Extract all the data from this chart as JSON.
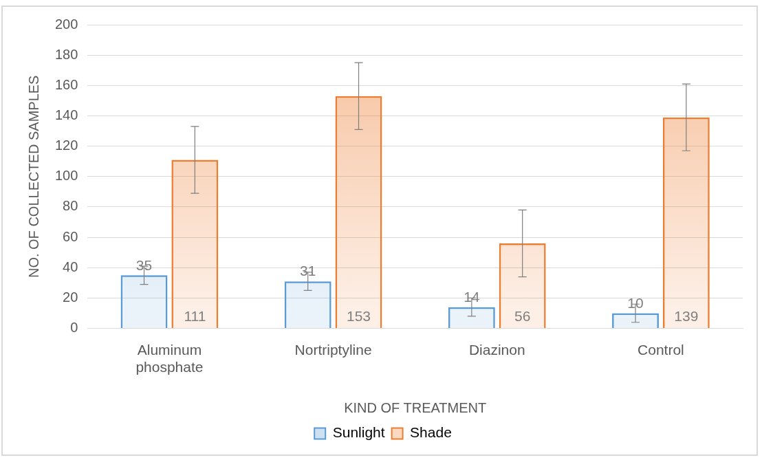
{
  "chart_data": {
    "type": "bar",
    "xlabel": "KIND OF TREATMENT",
    "ylabel": "NO. OF COLLECTED SAMPLES",
    "categories": [
      "Aluminum phosphate",
      "Nortriptyline",
      "Diazinon",
      "Control"
    ],
    "series": [
      {
        "name": "Sunlight",
        "color": "#5b9bd5",
        "values": [
          35,
          31,
          14,
          10
        ],
        "errors": [
          6,
          6,
          6,
          6
        ]
      },
      {
        "name": "Shade",
        "color": "#ed7d31",
        "values": [
          111,
          153,
          56,
          139
        ],
        "errors": [
          22,
          22,
          22,
          22
        ]
      }
    ],
    "ylim": [
      0,
      200
    ],
    "yticks": [
      0,
      20,
      40,
      60,
      80,
      100,
      120,
      140,
      160,
      180,
      200
    ],
    "grid": "y",
    "legend": "bottom",
    "data_labels": true
  }
}
